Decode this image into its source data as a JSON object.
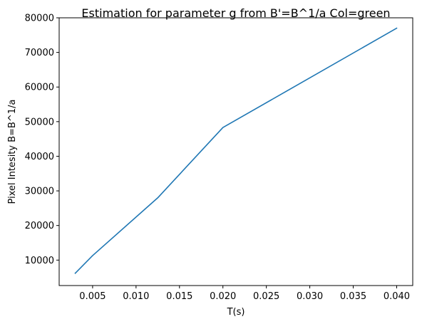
{
  "chart_data": {
    "type": "line",
    "title": "Estimation for parameter g from B'=B^1/a Col=green",
    "xlabel": "T(s)",
    "ylabel": "Pixel Intesity B=B^1/a",
    "xlim": [
      0.00115,
      0.04185
    ],
    "ylim": [
      2650,
      80000
    ],
    "x_ticks": [
      0.005,
      0.01,
      0.015,
      0.02,
      0.025,
      0.03,
      0.035,
      0.04
    ],
    "x_tick_labels": [
      "0.005",
      "0.010",
      "0.015",
      "0.020",
      "0.025",
      "0.030",
      "0.035",
      "0.040"
    ],
    "y_ticks": [
      10000,
      20000,
      30000,
      40000,
      50000,
      60000,
      70000,
      80000
    ],
    "y_tick_labels": [
      "10000",
      "20000",
      "30000",
      "40000",
      "50000",
      "60000",
      "70000",
      "80000"
    ],
    "grid": false,
    "series": [
      {
        "color": "#1f77b4",
        "x": [
          0.003,
          0.005,
          0.0125,
          0.02,
          0.04
        ],
        "y": [
          6200,
          11300,
          28000,
          48300,
          77000
        ]
      }
    ]
  }
}
